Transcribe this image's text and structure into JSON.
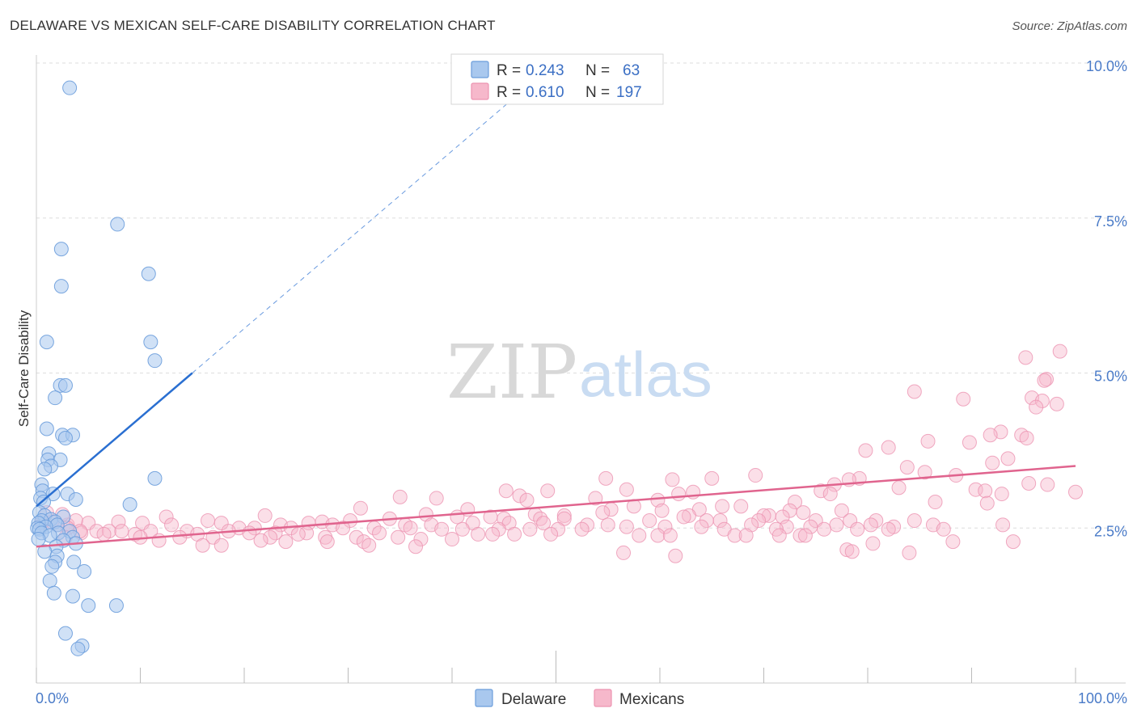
{
  "title": "DELAWARE VS MEXICAN SELF-CARE DISABILITY CORRELATION CHART",
  "source": "Source: ZipAtlas.com",
  "watermark": {
    "zip": "ZIP",
    "atlas": "atlas"
  },
  "colors": {
    "delaware_fill": "#a9c8ee",
    "delaware_stroke": "#6b9ddb",
    "delaware_line": "#2a6fd1",
    "mexicans_fill": "#f6b8cb",
    "mexicans_stroke": "#ec93b1",
    "mexicans_line": "#e0648e",
    "axis_label": "#4a7bc8",
    "grid": "#dddddd"
  },
  "legend_top": {
    "rows": [
      {
        "r_label": "R =",
        "r_value": "0.243",
        "n_label": "N =",
        "n_value": "63"
      },
      {
        "r_label": "R =",
        "r_value": "0.610",
        "n_label": "N =",
        "n_value": "197"
      }
    ]
  },
  "legend_bottom": [
    "Delaware",
    "Mexicans"
  ],
  "chart_data": {
    "type": "scatter",
    "title": "DELAWARE VS MEXICAN SELF-CARE DISABILITY CORRELATION CHART",
    "xlabel": "",
    "ylabel": "Self-Care Disability",
    "xlim": [
      0,
      100
    ],
    "ylim": [
      0,
      10.0
    ],
    "x_tick_labels": [
      "0.0%",
      "100.0%"
    ],
    "y_ticks": [
      2.5,
      5.0,
      7.5,
      10.0
    ],
    "y_tick_labels": [
      "2.5%",
      "5.0%",
      "7.5%",
      "10.0%"
    ],
    "grid": true,
    "legend_position": "top-center",
    "series": [
      {
        "name": "Delaware",
        "R": 0.243,
        "N": 63,
        "trend": {
          "x0": 0.0,
          "y0": 2.85,
          "x1": 15.0,
          "y1": 5.0,
          "dashed_to_x": 50.0
        },
        "points": [
          [
            3.2,
            9.6
          ],
          [
            7.8,
            7.4
          ],
          [
            2.4,
            7.0
          ],
          [
            10.8,
            6.6
          ],
          [
            2.4,
            6.4
          ],
          [
            11.0,
            5.5
          ],
          [
            1.0,
            5.5
          ],
          [
            11.4,
            5.2
          ],
          [
            2.3,
            4.8
          ],
          [
            2.8,
            4.8
          ],
          [
            1.8,
            4.6
          ],
          [
            1.0,
            4.1
          ],
          [
            2.5,
            4.0
          ],
          [
            3.5,
            4.0
          ],
          [
            2.8,
            3.95
          ],
          [
            1.2,
            3.7
          ],
          [
            1.1,
            3.6
          ],
          [
            2.3,
            3.6
          ],
          [
            1.4,
            3.5
          ],
          [
            0.8,
            3.45
          ],
          [
            11.4,
            3.3
          ],
          [
            0.5,
            3.2
          ],
          [
            0.6,
            3.1
          ],
          [
            1.6,
            3.05
          ],
          [
            3.0,
            3.05
          ],
          [
            0.4,
            2.98
          ],
          [
            3.8,
            2.96
          ],
          [
            0.7,
            2.92
          ],
          [
            9.0,
            2.88
          ],
          [
            0.3,
            2.75
          ],
          [
            0.8,
            2.7
          ],
          [
            2.6,
            2.68
          ],
          [
            1.4,
            2.64
          ],
          [
            0.5,
            2.62
          ],
          [
            1.8,
            2.6
          ],
          [
            0.2,
            2.58
          ],
          [
            2.0,
            2.55
          ],
          [
            0.9,
            2.52
          ],
          [
            0.1,
            2.5
          ],
          [
            0.3,
            2.48
          ],
          [
            3.2,
            2.45
          ],
          [
            2.1,
            2.42
          ],
          [
            0.5,
            2.42
          ],
          [
            1.3,
            2.38
          ],
          [
            3.5,
            2.35
          ],
          [
            0.2,
            2.32
          ],
          [
            2.6,
            2.3
          ],
          [
            3.8,
            2.25
          ],
          [
            1.9,
            2.2
          ],
          [
            0.8,
            2.12
          ],
          [
            2.0,
            2.05
          ],
          [
            1.8,
            1.95
          ],
          [
            3.6,
            1.95
          ],
          [
            1.5,
            1.88
          ],
          [
            4.6,
            1.8
          ],
          [
            1.3,
            1.65
          ],
          [
            1.7,
            1.45
          ],
          [
            3.5,
            1.4
          ],
          [
            5.0,
            1.25
          ],
          [
            7.7,
            1.25
          ],
          [
            2.8,
            0.8
          ],
          [
            4.4,
            0.6
          ],
          [
            4.0,
            0.55
          ]
        ]
      },
      {
        "name": "Mexicans",
        "R": 0.61,
        "N": 197,
        "trend": {
          "x0": 0.0,
          "y0": 2.2,
          "x1": 100.0,
          "y1": 3.5
        },
        "points": [
          [
            98.5,
            5.35
          ],
          [
            95.2,
            5.25
          ],
          [
            97.2,
            4.9
          ],
          [
            97.0,
            4.88
          ],
          [
            95.8,
            4.6
          ],
          [
            84.5,
            4.7
          ],
          [
            96.8,
            4.55
          ],
          [
            89.2,
            4.58
          ],
          [
            98.2,
            4.5
          ],
          [
            96.2,
            4.45
          ],
          [
            92.8,
            4.05
          ],
          [
            91.8,
            4.0
          ],
          [
            94.8,
            4.0
          ],
          [
            95.3,
            3.95
          ],
          [
            85.8,
            3.9
          ],
          [
            89.8,
            3.88
          ],
          [
            82.0,
            3.8
          ],
          [
            79.8,
            3.75
          ],
          [
            93.5,
            3.62
          ],
          [
            92.0,
            3.55
          ],
          [
            83.8,
            3.48
          ],
          [
            85.5,
            3.4
          ],
          [
            88.5,
            3.35
          ],
          [
            69.2,
            3.35
          ],
          [
            79.2,
            3.3
          ],
          [
            65.0,
            3.3
          ],
          [
            54.8,
            3.3
          ],
          [
            78.2,
            3.28
          ],
          [
            61.2,
            3.28
          ],
          [
            95.5,
            3.22
          ],
          [
            97.3,
            3.2
          ],
          [
            76.8,
            3.2
          ],
          [
            83.0,
            3.15
          ],
          [
            90.4,
            3.12
          ],
          [
            91.3,
            3.1
          ],
          [
            56.8,
            3.12
          ],
          [
            75.5,
            3.1
          ],
          [
            45.2,
            3.1
          ],
          [
            49.2,
            3.1
          ],
          [
            63.2,
            3.08
          ],
          [
            100.0,
            3.08
          ],
          [
            61.8,
            3.05
          ],
          [
            92.9,
            3.05
          ],
          [
            76.4,
            3.05
          ],
          [
            46.5,
            3.02
          ],
          [
            35.0,
            3.0
          ],
          [
            38.5,
            2.98
          ],
          [
            53.8,
            2.98
          ],
          [
            47.2,
            2.95
          ],
          [
            59.8,
            2.95
          ],
          [
            73.0,
            2.92
          ],
          [
            86.5,
            2.92
          ],
          [
            91.5,
            2.9
          ],
          [
            66.0,
            2.85
          ],
          [
            57.5,
            2.85
          ],
          [
            67.8,
            2.85
          ],
          [
            31.2,
            2.82
          ],
          [
            41.5,
            2.8
          ],
          [
            55.3,
            2.8
          ],
          [
            63.8,
            2.8
          ],
          [
            72.5,
            2.78
          ],
          [
            60.2,
            2.78
          ],
          [
            77.5,
            2.78
          ],
          [
            73.8,
            2.75
          ],
          [
            54.5,
            2.75
          ],
          [
            37.5,
            2.72
          ],
          [
            48.0,
            2.72
          ],
          [
            50.8,
            2.7
          ],
          [
            22.0,
            2.7
          ],
          [
            62.8,
            2.7
          ],
          [
            70.5,
            2.7
          ],
          [
            70.0,
            2.7
          ],
          [
            71.8,
            2.68
          ],
          [
            43.7,
            2.68
          ],
          [
            12.5,
            2.68
          ],
          [
            40.5,
            2.68
          ],
          [
            62.3,
            2.68
          ],
          [
            16.5,
            2.62
          ],
          [
            30.2,
            2.62
          ],
          [
            45.0,
            2.65
          ],
          [
            48.5,
            2.65
          ],
          [
            34.0,
            2.65
          ],
          [
            50.8,
            2.65
          ],
          [
            59.0,
            2.62
          ],
          [
            65.8,
            2.62
          ],
          [
            69.5,
            2.62
          ],
          [
            64.5,
            2.62
          ],
          [
            75.0,
            2.62
          ],
          [
            78.3,
            2.62
          ],
          [
            80.8,
            2.62
          ],
          [
            84.5,
            2.62
          ],
          [
            27.5,
            2.6
          ],
          [
            17.8,
            2.58
          ],
          [
            26.2,
            2.58
          ],
          [
            7.9,
            2.6
          ],
          [
            10.2,
            2.58
          ],
          [
            5.0,
            2.58
          ],
          [
            42.0,
            2.58
          ],
          [
            45.5,
            2.58
          ],
          [
            48.8,
            2.58
          ],
          [
            53.0,
            2.55
          ],
          [
            68.8,
            2.55
          ],
          [
            77.0,
            2.55
          ],
          [
            80.3,
            2.55
          ],
          [
            86.3,
            2.55
          ],
          [
            93.0,
            2.55
          ],
          [
            13.0,
            2.55
          ],
          [
            3.0,
            2.55
          ],
          [
            23.5,
            2.55
          ],
          [
            28.5,
            2.55
          ],
          [
            35.5,
            2.55
          ],
          [
            38.0,
            2.55
          ],
          [
            55.0,
            2.55
          ],
          [
            56.8,
            2.52
          ],
          [
            60.5,
            2.52
          ],
          [
            64.0,
            2.52
          ],
          [
            72.2,
            2.52
          ],
          [
            74.5,
            2.52
          ],
          [
            82.5,
            2.52
          ],
          [
            19.5,
            2.5
          ],
          [
            21.0,
            2.5
          ],
          [
            24.5,
            2.5
          ],
          [
            29.5,
            2.5
          ],
          [
            32.5,
            2.5
          ],
          [
            36.0,
            2.5
          ],
          [
            39.0,
            2.48
          ],
          [
            41.0,
            2.48
          ],
          [
            44.5,
            2.48
          ],
          [
            47.5,
            2.48
          ],
          [
            50.2,
            2.48
          ],
          [
            52.5,
            2.48
          ],
          [
            66.2,
            2.48
          ],
          [
            71.2,
            2.48
          ],
          [
            75.8,
            2.48
          ],
          [
            79.0,
            2.48
          ],
          [
            82.0,
            2.48
          ],
          [
            87.3,
            2.48
          ],
          [
            5.8,
            2.45
          ],
          [
            7.0,
            2.45
          ],
          [
            8.2,
            2.45
          ],
          [
            11.0,
            2.45
          ],
          [
            14.5,
            2.45
          ],
          [
            18.5,
            2.45
          ],
          [
            20.5,
            2.42
          ],
          [
            23.0,
            2.42
          ],
          [
            26.0,
            2.42
          ],
          [
            33.0,
            2.42
          ],
          [
            4.3,
            2.42
          ],
          [
            6.5,
            2.4
          ],
          [
            9.5,
            2.4
          ],
          [
            15.5,
            2.4
          ],
          [
            25.2,
            2.4
          ],
          [
            42.5,
            2.4
          ],
          [
            43.9,
            2.4
          ],
          [
            46.0,
            2.4
          ],
          [
            49.5,
            2.4
          ],
          [
            58.0,
            2.38
          ],
          [
            59.8,
            2.38
          ],
          [
            61.0,
            2.38
          ],
          [
            67.2,
            2.38
          ],
          [
            68.3,
            2.38
          ],
          [
            71.5,
            2.38
          ],
          [
            73.5,
            2.38
          ],
          [
            74.0,
            2.38
          ],
          [
            10.0,
            2.35
          ],
          [
            13.8,
            2.35
          ],
          [
            17.0,
            2.35
          ],
          [
            22.5,
            2.35
          ],
          [
            27.8,
            2.35
          ],
          [
            30.8,
            2.35
          ],
          [
            34.8,
            2.35
          ],
          [
            37.0,
            2.32
          ],
          [
            40.0,
            2.32
          ],
          [
            11.8,
            2.3
          ],
          [
            21.6,
            2.3
          ],
          [
            24.0,
            2.28
          ],
          [
            28.0,
            2.28
          ],
          [
            31.5,
            2.28
          ],
          [
            88.2,
            2.28
          ],
          [
            94.0,
            2.28
          ],
          [
            80.5,
            2.25
          ],
          [
            16.0,
            2.22
          ],
          [
            17.8,
            2.22
          ],
          [
            32.0,
            2.22
          ],
          [
            36.5,
            2.2
          ],
          [
            1.0,
            2.75
          ],
          [
            2.5,
            2.72
          ],
          [
            1.5,
            2.6
          ],
          [
            3.8,
            2.62
          ],
          [
            0.5,
            2.58
          ],
          [
            2.0,
            2.55
          ],
          [
            3.0,
            2.5
          ],
          [
            4.2,
            2.45
          ],
          [
            78.0,
            2.15
          ],
          [
            84.0,
            2.1
          ],
          [
            56.5,
            2.1
          ],
          [
            78.5,
            2.12
          ],
          [
            61.5,
            2.05
          ],
          [
            2.8,
            2.35
          ]
        ]
      }
    ]
  }
}
